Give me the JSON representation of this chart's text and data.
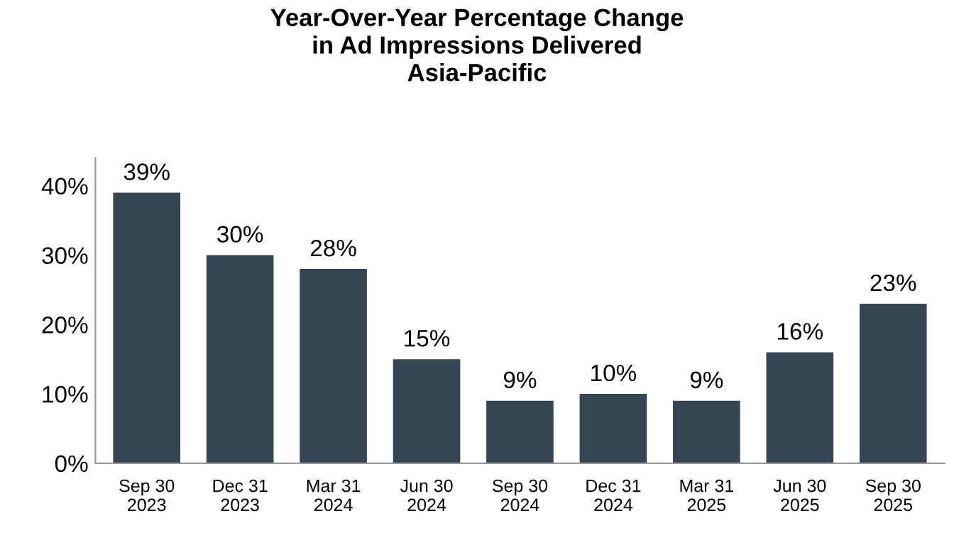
{
  "chart_data": {
    "type": "bar",
    "title": "Year-Over-Year Percentage Change\nin Ad Impressions Delivered\nAsia-Pacific",
    "categories": [
      "Sep 30\n2023",
      "Dec 31\n2023",
      "Mar 31\n2024",
      "Jun 30\n2024",
      "Sep 30\n2024",
      "Dec 31\n2024",
      "Mar 31\n2025",
      "Jun 30\n2025",
      "Sep 30\n2025"
    ],
    "values": [
      39,
      30,
      28,
      15,
      9,
      10,
      9,
      16,
      23
    ],
    "value_labels": [
      "39%",
      "30%",
      "28%",
      "15%",
      "9%",
      "10%",
      "9%",
      "16%",
      "23%"
    ],
    "color": "#344651",
    "ylim": [
      0,
      44
    ],
    "yticks": [
      {
        "value": 0,
        "label": "0%"
      },
      {
        "value": 10,
        "label": "10%"
      },
      {
        "value": 20,
        "label": "20%"
      },
      {
        "value": 30,
        "label": "30%"
      },
      {
        "value": 40,
        "label": "40%"
      }
    ],
    "grid": false,
    "legend": false
  }
}
